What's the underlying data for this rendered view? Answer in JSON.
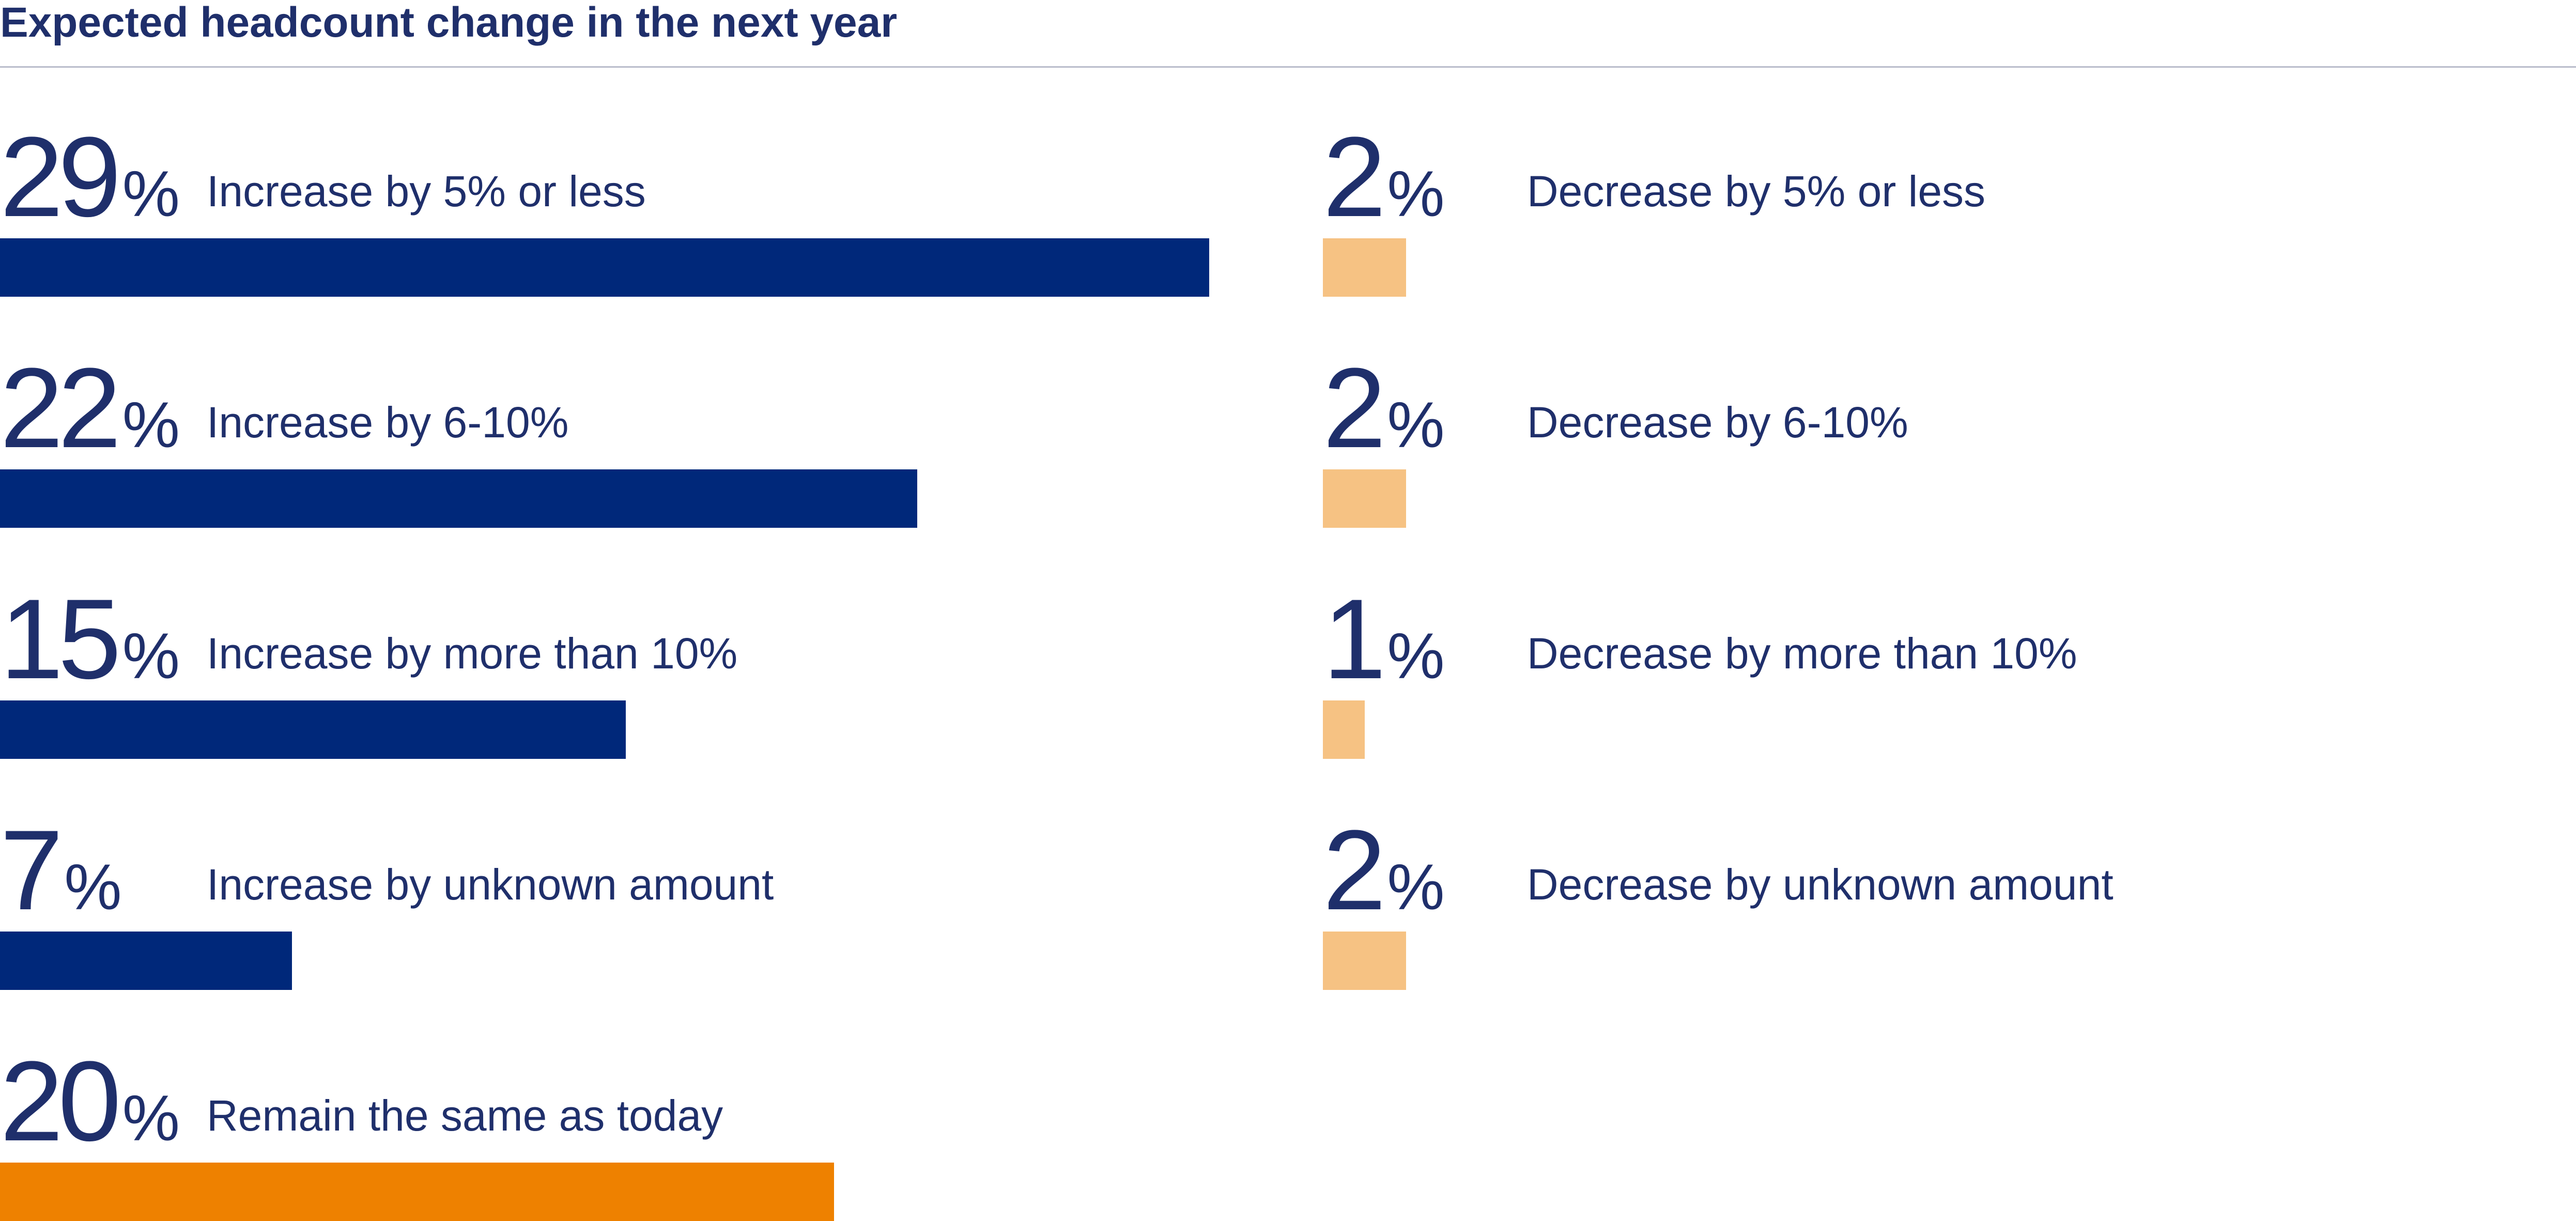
{
  "chart_data": {
    "type": "bar",
    "title": "Expected headcount change in the next year",
    "unit": "%",
    "colors": {
      "increase": "#00287a",
      "decrease": "#f6c283",
      "same": "#ee8100",
      "text": "#1f2f6b",
      "rule": "#b9bccb"
    },
    "increase": [
      {
        "value": 29,
        "label": "Increase by 5% or less"
      },
      {
        "value": 22,
        "label": "Increase by 6-10%"
      },
      {
        "value": 15,
        "label": "Increase by more than 10%"
      },
      {
        "value": 7,
        "label": "Increase by unknown amount"
      },
      {
        "value": 20,
        "label": "Remain the same as today"
      }
    ],
    "decrease": [
      {
        "value": 2,
        "label": "Decrease by 5% or less"
      },
      {
        "value": 2,
        "label": "Decrease by 6-10%"
      },
      {
        "value": 1,
        "label": "Decrease by more than 10%"
      },
      {
        "value": 2,
        "label": "Decrease by unknown amount"
      }
    ]
  }
}
